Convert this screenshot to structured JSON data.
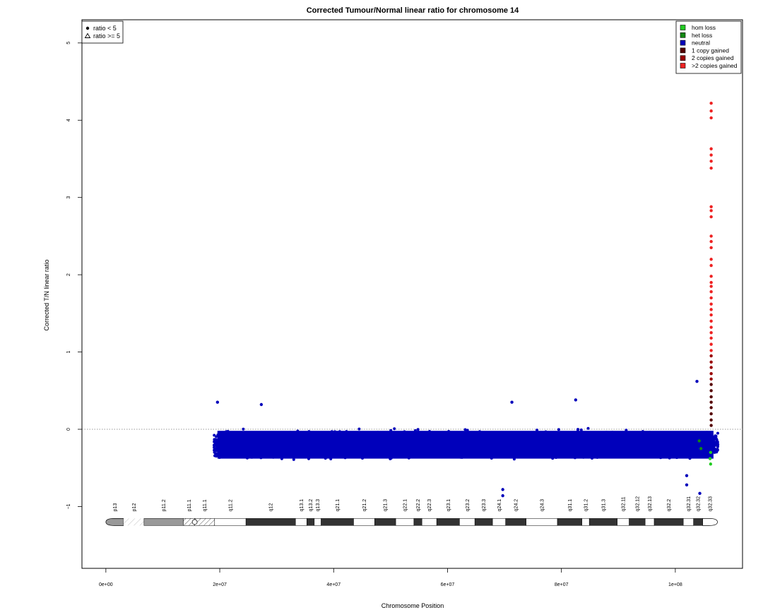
{
  "chart_data": {
    "type": "scatter",
    "title": "Corrected Tumour/Normal linear ratio for chromosome  14",
    "xlabel": "Chromosome Position",
    "ylabel": "Corrected T/N linear ratio",
    "xlim": [
      -4200000,
      111800000
    ],
    "ylim": [
      -1.8,
      5.3
    ],
    "x_ticks": [
      0,
      20000000,
      40000000,
      60000000,
      80000000,
      100000000
    ],
    "x_tick_labels": [
      "0e+00",
      "2e+07",
      "4e+07",
      "6e+07",
      "8e+07",
      "1e+08"
    ],
    "y_ticks": [
      -1,
      0,
      1,
      2,
      3,
      4,
      5
    ],
    "y_tick_labels": [
      "−1",
      "0",
      "1",
      "2",
      "3",
      "4",
      "5"
    ],
    "reference_line_y": 0,
    "legend_shapes": {
      "position": "top-left",
      "entries": [
        {
          "symbol": "dot",
          "label": "ratio < 5"
        },
        {
          "symbol": "triangle",
          "label": "ratio >= 5"
        }
      ]
    },
    "legend_states": {
      "position": "top-right",
      "entries": [
        {
          "label": "hom loss",
          "color": "#22cc22"
        },
        {
          "label": "het loss",
          "color": "#118811"
        },
        {
          "label": "neutral",
          "color": "#0000bb"
        },
        {
          "label": "1 copy gained",
          "color": "#550000"
        },
        {
          "label": "2 copies gained",
          "color": "#990000"
        },
        {
          "label": ">2 copies gained",
          "color": "#ee2222"
        }
      ]
    },
    "neutral_cloud": {
      "x_range": [
        19000000,
        107500000
      ],
      "y_typical": -0.2,
      "y_spread": [
        -0.5,
        0.25
      ],
      "color": "#0000bb"
    },
    "points": [
      {
        "x": 106300000,
        "y": 5.0,
        "state": ">2 copies gained",
        "symbol": "triangle"
      },
      {
        "x": 106300000,
        "y": 4.22,
        "state": ">2 copies gained"
      },
      {
        "x": 106300000,
        "y": 4.12,
        "state": ">2 copies gained"
      },
      {
        "x": 106300000,
        "y": 4.03,
        "state": ">2 copies gained"
      },
      {
        "x": 106300000,
        "y": 3.63,
        "state": ">2 copies gained"
      },
      {
        "x": 106300000,
        "y": 3.55,
        "state": ">2 copies gained"
      },
      {
        "x": 106300000,
        "y": 3.47,
        "state": ">2 copies gained"
      },
      {
        "x": 106300000,
        "y": 3.38,
        "state": ">2 copies gained"
      },
      {
        "x": 106300000,
        "y": 2.88,
        "state": ">2 copies gained"
      },
      {
        "x": 106300000,
        "y": 2.83,
        "state": ">2 copies gained"
      },
      {
        "x": 106300000,
        "y": 2.75,
        "state": ">2 copies gained"
      },
      {
        "x": 106300000,
        "y": 2.5,
        "state": ">2 copies gained"
      },
      {
        "x": 106300000,
        "y": 2.43,
        "state": ">2 copies gained"
      },
      {
        "x": 106300000,
        "y": 2.35,
        "state": ">2 copies gained"
      },
      {
        "x": 106300000,
        "y": 2.2,
        "state": ">2 copies gained"
      },
      {
        "x": 106300000,
        "y": 2.12,
        "state": ">2 copies gained"
      },
      {
        "x": 106300000,
        "y": 1.98,
        "state": ">2 copies gained"
      },
      {
        "x": 106300000,
        "y": 1.9,
        "state": ">2 copies gained"
      },
      {
        "x": 106300000,
        "y": 1.85,
        "state": ">2 copies gained"
      },
      {
        "x": 106300000,
        "y": 1.78,
        "state": ">2 copies gained"
      },
      {
        "x": 106300000,
        "y": 1.7,
        "state": ">2 copies gained"
      },
      {
        "x": 106300000,
        "y": 1.62,
        "state": ">2 copies gained"
      },
      {
        "x": 106300000,
        "y": 1.55,
        "state": ">2 copies gained"
      },
      {
        "x": 106300000,
        "y": 1.48,
        "state": ">2 copies gained"
      },
      {
        "x": 106300000,
        "y": 1.4,
        "state": ">2 copies gained"
      },
      {
        "x": 106300000,
        "y": 1.32,
        "state": ">2 copies gained"
      },
      {
        "x": 106300000,
        "y": 1.25,
        "state": ">2 copies gained"
      },
      {
        "x": 106300000,
        "y": 1.18,
        "state": ">2 copies gained"
      },
      {
        "x": 106300000,
        "y": 1.1,
        "state": ">2 copies gained"
      },
      {
        "x": 106300000,
        "y": 1.02,
        "state": ">2 copies gained"
      },
      {
        "x": 106300000,
        "y": 0.95,
        "state": "2 copies gained"
      },
      {
        "x": 106300000,
        "y": 0.87,
        "state": "2 copies gained"
      },
      {
        "x": 106300000,
        "y": 0.8,
        "state": "2 copies gained"
      },
      {
        "x": 106300000,
        "y": 0.72,
        "state": "2 copies gained"
      },
      {
        "x": 106300000,
        "y": 0.65,
        "state": "2 copies gained"
      },
      {
        "x": 106300000,
        "y": 0.58,
        "state": "1 copy gained"
      },
      {
        "x": 106300000,
        "y": 0.5,
        "state": "1 copy gained"
      },
      {
        "x": 106300000,
        "y": 0.42,
        "state": "1 copy gained"
      },
      {
        "x": 106300000,
        "y": 0.35,
        "state": "1 copy gained"
      },
      {
        "x": 106300000,
        "y": 0.28,
        "state": "1 copy gained"
      },
      {
        "x": 106300000,
        "y": 0.2,
        "state": "1 copy gained"
      },
      {
        "x": 106300000,
        "y": 0.12,
        "state": "1 copy gained"
      },
      {
        "x": 106300000,
        "y": 0.05,
        "state": "1 copy gained"
      },
      {
        "x": 106200000,
        "y": -0.3,
        "state": "hom loss"
      },
      {
        "x": 106100000,
        "y": -0.38,
        "state": "hom loss"
      },
      {
        "x": 106200000,
        "y": -0.45,
        "state": "hom loss"
      },
      {
        "x": 104200000,
        "y": -0.15,
        "state": "het loss"
      },
      {
        "x": 104500000,
        "y": -0.25,
        "state": "het loss"
      },
      {
        "x": 103800000,
        "y": 0.62,
        "state": "neutral"
      },
      {
        "x": 71300000,
        "y": 0.35,
        "state": "neutral"
      },
      {
        "x": 82500000,
        "y": 0.38,
        "state": "neutral"
      },
      {
        "x": 19600000,
        "y": 0.35,
        "state": "neutral"
      },
      {
        "x": 27300000,
        "y": 0.32,
        "state": "neutral"
      },
      {
        "x": 69700000,
        "y": -0.78,
        "state": "neutral"
      },
      {
        "x": 69700000,
        "y": -0.86,
        "state": "neutral"
      },
      {
        "x": 102000000,
        "y": -0.6,
        "state": "neutral"
      },
      {
        "x": 102000000,
        "y": -0.72,
        "state": "neutral"
      },
      {
        "x": 104300000,
        "y": -0.83,
        "state": "neutral"
      }
    ],
    "ideogram": {
      "y": -1.2,
      "bands": [
        {
          "name": "p13",
          "start": 0,
          "end": 3100000,
          "stain": "gvar"
        },
        {
          "name": "p12",
          "start": 3100000,
          "end": 6700000,
          "stain": "stalk"
        },
        {
          "name": "p11.2",
          "start": 6700000,
          "end": 13600000,
          "stain": "gvar"
        },
        {
          "name": "p11.1",
          "start": 13600000,
          "end": 15600000,
          "stain": "acen"
        },
        {
          "name": "q11.1",
          "start": 15600000,
          "end": 19100000,
          "stain": "acen"
        },
        {
          "name": "q11.2",
          "start": 19100000,
          "end": 24600000,
          "stain": "gneg"
        },
        {
          "name": "q12",
          "start": 24600000,
          "end": 33300000,
          "stain": "gpos100"
        },
        {
          "name": "q13.1",
          "start": 33300000,
          "end": 35300000,
          "stain": "gneg"
        },
        {
          "name": "q13.2",
          "start": 35300000,
          "end": 36600000,
          "stain": "gpos100"
        },
        {
          "name": "q13.3",
          "start": 36600000,
          "end": 37800000,
          "stain": "gneg"
        },
        {
          "name": "q21.1",
          "start": 37800000,
          "end": 43500000,
          "stain": "gpos100"
        },
        {
          "name": "q21.2",
          "start": 43500000,
          "end": 47200000,
          "stain": "gneg"
        },
        {
          "name": "q21.3",
          "start": 47200000,
          "end": 50900000,
          "stain": "gpos100"
        },
        {
          "name": "q22.1",
          "start": 50900000,
          "end": 54100000,
          "stain": "gneg"
        },
        {
          "name": "q22.2",
          "start": 54100000,
          "end": 55500000,
          "stain": "gpos100"
        },
        {
          "name": "q22.3",
          "start": 55500000,
          "end": 58100000,
          "stain": "gneg"
        },
        {
          "name": "q23.1",
          "start": 58100000,
          "end": 62100000,
          "stain": "gpos100"
        },
        {
          "name": "q23.2",
          "start": 62100000,
          "end": 64800000,
          "stain": "gneg"
        },
        {
          "name": "q23.3",
          "start": 64800000,
          "end": 67900000,
          "stain": "gpos100"
        },
        {
          "name": "q24.1",
          "start": 67900000,
          "end": 70200000,
          "stain": "gneg"
        },
        {
          "name": "q24.2",
          "start": 70200000,
          "end": 73800000,
          "stain": "gpos100"
        },
        {
          "name": "q24.3",
          "start": 73800000,
          "end": 79300000,
          "stain": "gneg"
        },
        {
          "name": "q31.1",
          "start": 79300000,
          "end": 83600000,
          "stain": "gpos100"
        },
        {
          "name": "q31.2",
          "start": 83600000,
          "end": 84900000,
          "stain": "gneg"
        },
        {
          "name": "q31.3",
          "start": 84900000,
          "end": 89800000,
          "stain": "gpos100"
        },
        {
          "name": "q32.11",
          "start": 89800000,
          "end": 91900000,
          "stain": "gneg"
        },
        {
          "name": "q32.12",
          "start": 91900000,
          "end": 94700000,
          "stain": "gpos100"
        },
        {
          "name": "q32.13",
          "start": 94700000,
          "end": 96300000,
          "stain": "gneg"
        },
        {
          "name": "q32.2",
          "start": 96300000,
          "end": 101400000,
          "stain": "gpos100"
        },
        {
          "name": "q32.31",
          "start": 101400000,
          "end": 103200000,
          "stain": "gneg"
        },
        {
          "name": "q32.32",
          "start": 103200000,
          "end": 104800000,
          "stain": "gpos100"
        },
        {
          "name": "q32.33",
          "start": 104800000,
          "end": 107400000,
          "stain": "gneg"
        }
      ]
    }
  }
}
